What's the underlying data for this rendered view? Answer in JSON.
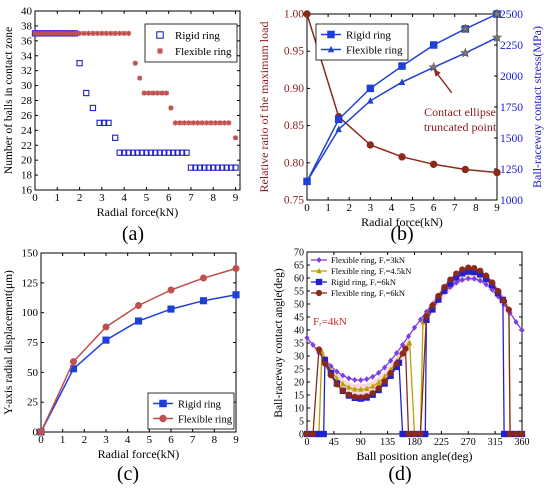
{
  "chart_data": [
    {
      "panel": "(a)",
      "type": "scatter",
      "xlabel": "Radial force(kN)",
      "ylabel": "Number of balls in contact zone",
      "xlim": [
        0,
        9.2
      ],
      "ylim": [
        16,
        40
      ],
      "xticks": [
        0,
        1,
        2,
        3,
        4,
        5,
        6,
        7,
        8,
        9
      ],
      "yticks": [
        16,
        18,
        20,
        22,
        24,
        26,
        28,
        30,
        32,
        34,
        36,
        38,
        40
      ],
      "legend_position": "top-right",
      "series": [
        {
          "name": "Rigid ring",
          "color": "#2222cc",
          "marker": "open-square",
          "x": [
            0,
            0.15,
            0.3,
            0.45,
            0.6,
            0.75,
            0.9,
            1.05,
            1.2,
            1.35,
            1.5,
            1.65,
            1.8,
            2.0,
            2.3,
            2.6,
            2.9,
            3.1,
            3.3,
            3.6,
            3.8,
            4.0,
            4.2,
            4.4,
            4.6,
            4.8,
            5.0,
            5.2,
            5.4,
            5.6,
            5.8,
            6.0,
            6.2,
            6.4,
            6.6,
            6.8,
            7.0,
            7.2,
            7.4,
            7.6,
            7.8,
            8.0,
            8.2,
            8.4,
            8.6,
            8.8,
            9.0
          ],
          "y": [
            37,
            37,
            37,
            37,
            37,
            37,
            37,
            37,
            37,
            37,
            37,
            37,
            37,
            33,
            29,
            27,
            25,
            25,
            25,
            23,
            21,
            21,
            21,
            21,
            21,
            21,
            21,
            21,
            21,
            21,
            21,
            21,
            21,
            21,
            21,
            21,
            19,
            19,
            19,
            19,
            19,
            19,
            19,
            19,
            19,
            19,
            19
          ]
        },
        {
          "name": "Flexible ring",
          "color": "#c0504d",
          "marker": "asterisk",
          "x": [
            0,
            0.15,
            0.3,
            0.45,
            0.6,
            0.75,
            0.9,
            1.05,
            1.2,
            1.35,
            1.5,
            1.65,
            1.8,
            2.0,
            2.2,
            2.4,
            2.6,
            2.8,
            3.0,
            3.2,
            3.4,
            3.6,
            3.8,
            4.0,
            4.2,
            4.5,
            4.7,
            4.9,
            5.1,
            5.3,
            5.5,
            5.7,
            5.9,
            6.1,
            6.3,
            6.5,
            6.7,
            6.9,
            7.1,
            7.3,
            7.5,
            7.7,
            7.9,
            8.1,
            8.3,
            8.5,
            8.7,
            9.0
          ],
          "y": [
            37,
            37,
            37,
            37,
            37,
            37,
            37,
            37,
            37,
            37,
            37,
            37,
            37,
            37,
            37,
            37,
            37,
            37,
            37,
            37,
            37,
            37,
            37,
            37,
            37,
            33,
            31,
            29,
            29,
            29,
            29,
            29,
            29,
            27,
            25,
            25,
            25,
            25,
            25,
            25,
            25,
            25,
            25,
            25,
            25,
            25,
            25,
            23
          ]
        }
      ]
    },
    {
      "panel": "(b)",
      "type": "line",
      "xlabel": "Radial force(kN)",
      "ylabel_left": "Relative ratio of the maximum load",
      "ylabel_right": "Ball-raceway contact stress(MPa)",
      "xlim": [
        0,
        9
      ],
      "ylim_left": [
        0.75,
        1.0
      ],
      "ylim_right": [
        1000,
        2500
      ],
      "xticks": [
        0,
        1,
        2,
        3,
        4,
        5,
        6,
        7,
        8,
        9
      ],
      "yticks_left": [
        "0.75",
        "0.80",
        "0.85",
        "0.90",
        "0.95",
        "1.00"
      ],
      "yticks_right": [
        1000,
        1250,
        1500,
        1750,
        2000,
        2250,
        2500
      ],
      "legend_position": "upper-left",
      "annotation": [
        "Contact ellipse",
        "truncated point"
      ],
      "annotation_point": [
        6,
        2075
      ],
      "series": [
        {
          "name": "",
          "axis": "left",
          "color": "#8b2a1a",
          "marker": "circle",
          "x": [
            0,
            1.5,
            3,
            4.5,
            6,
            7.5,
            9
          ],
          "y": [
            1.0,
            0.862,
            0.824,
            0.808,
            0.798,
            0.791,
            0.787
          ]
        },
        {
          "name": "Rigid ring",
          "axis": "right",
          "color": "#1f3fd6",
          "marker": "square",
          "x": [
            0,
            1.5,
            3,
            4.5,
            6,
            7.5,
            9
          ],
          "y": [
            1150,
            1650,
            1900,
            2080,
            2250,
            2380,
            2500
          ]
        },
        {
          "name": "Flexible ring",
          "axis": "right",
          "color": "#1f3fd6",
          "marker": "triangle",
          "x": [
            0,
            1.5,
            3,
            4.5,
            6,
            7.5,
            9
          ],
          "y": [
            1150,
            1570,
            1800,
            1950,
            2070,
            2185,
            2310
          ]
        }
      ],
      "truncation_markers": {
        "marker": "star",
        "color": "#777777",
        "points": [
          {
            "series": 2,
            "index": 4
          },
          {
            "series": 2,
            "index": 5
          },
          {
            "series": 2,
            "index": 6
          },
          {
            "series": 1,
            "index": 5
          },
          {
            "series": 1,
            "index": 6
          }
        ]
      }
    },
    {
      "panel": "(c)",
      "type": "line",
      "xlabel": "Radial force(kN)",
      "ylabel": "Y-axis radial displacement(μm)",
      "xlim": [
        0,
        9
      ],
      "ylim": [
        0,
        150
      ],
      "xticks": [
        0,
        1,
        2,
        3,
        4,
        5,
        6,
        7,
        8,
        9
      ],
      "yticks": [
        0,
        25,
        50,
        75,
        100,
        125,
        150
      ],
      "legend_position": "bottom-right",
      "series": [
        {
          "name": "Rigid ring",
          "color": "#1f3fd6",
          "marker": "square",
          "x": [
            0,
            1.5,
            3,
            4.5,
            6,
            7.5,
            9
          ],
          "y": [
            0,
            53,
            77,
            93,
            103,
            110,
            115
          ]
        },
        {
          "name": "Flexible ring",
          "color": "#c0504d",
          "marker": "circle",
          "x": [
            0,
            1.5,
            3,
            4.5,
            6,
            7.5,
            9
          ],
          "y": [
            0,
            59,
            88,
            106,
            119,
            129,
            137
          ]
        }
      ]
    },
    {
      "panel": "(d)",
      "type": "line",
      "xlabel": "Ball position angle(deg)",
      "ylabel": "Ball-raceway contact angle(deg)",
      "xlim": [
        0,
        360
      ],
      "ylim": [
        0,
        70
      ],
      "xticks": [
        0,
        45,
        90,
        135,
        180,
        225,
        270,
        315,
        360
      ],
      "yticks": [
        0,
        5,
        10,
        15,
        20,
        25,
        30,
        35,
        40,
        45,
        50,
        55,
        60,
        65,
        70
      ],
      "legend_position": "upper-left",
      "annotation": "Fᵣ=4kN",
      "series": [
        {
          "name": "Flexible ring,  Fᵣ=3kN",
          "color": "#7b3fe4",
          "marker": "diamond",
          "x": [
            0,
            10,
            20,
            30,
            40,
            50,
            60,
            70,
            80,
            90,
            100,
            110,
            120,
            130,
            140,
            150,
            160,
            170,
            180,
            190,
            200,
            210,
            220,
            230,
            240,
            250,
            260,
            270,
            280,
            290,
            300,
            310,
            320,
            330,
            340,
            350,
            360
          ],
          "y": [
            37,
            34.3,
            31.2,
            28.5,
            26.1,
            24.0,
            22.5,
            21.4,
            20.8,
            20.7,
            21.1,
            22.0,
            23.5,
            25.6,
            28.2,
            31.1,
            34.3,
            37.6,
            40.9,
            44.0,
            47.0,
            49.9,
            52.4,
            54.7,
            56.6,
            58.2,
            59.3,
            59.8,
            59.7,
            59.0,
            57.6,
            55.6,
            53.0,
            50.0,
            46.6,
            43.1,
            39.9
          ]
        },
        {
          "name": "Flexible ring,  Fᵣ=4.5kN",
          "color": "#b8a000",
          "marker": "triangle",
          "x": [
            0,
            10,
            20,
            25,
            30,
            40,
            50,
            60,
            70,
            80,
            90,
            100,
            110,
            120,
            130,
            140,
            150,
            160,
            170,
            172,
            180,
            190,
            194,
            200,
            210,
            220,
            230,
            240,
            250,
            260,
            270,
            280,
            290,
            300,
            310,
            320,
            330,
            338,
            340,
            350,
            360
          ],
          "y": [
            0,
            0,
            0,
            31.5,
            29.0,
            24.4,
            21.3,
            19.2,
            17.9,
            17.2,
            17.1,
            17.4,
            18.3,
            19.8,
            22.0,
            24.7,
            27.8,
            31.2,
            34.6,
            35.0,
            0,
            0,
            43.0,
            45.6,
            49.3,
            52.6,
            55.6,
            58.1,
            60.0,
            61.4,
            62.0,
            61.9,
            61.0,
            59.4,
            57.2,
            54.3,
            50.8,
            47.8,
            0,
            0,
            0
          ]
        },
        {
          "name": "Rigid ring,  Fᵣ=6kN",
          "color": "#2020d0",
          "marker": "square",
          "x": [
            0,
            10,
            20,
            28,
            30,
            40,
            50,
            60,
            70,
            80,
            90,
            100,
            110,
            120,
            130,
            140,
            150,
            154,
            160,
            170,
            180,
            190,
            198,
            200,
            210,
            220,
            230,
            240,
            250,
            260,
            270,
            280,
            290,
            300,
            310,
            320,
            328,
            330,
            340,
            350,
            360
          ],
          "y": [
            0,
            0,
            0,
            0,
            28.5,
            23.4,
            19.4,
            16.6,
            14.8,
            13.9,
            13.6,
            14.0,
            15.1,
            16.9,
            19.4,
            22.4,
            25.8,
            27.4,
            0,
            0,
            0,
            0,
            0,
            43.9,
            47.9,
            51.7,
            55.1,
            57.9,
            60.2,
            61.8,
            62.5,
            62.3,
            61.4,
            59.7,
            57.3,
            54.2,
            51.6,
            0,
            0,
            0,
            0
          ]
        },
        {
          "name": "Flexible ring,  Fᵣ=6kN",
          "color": "#8b2a1a",
          "marker": "circle",
          "x": [
            0,
            10,
            20,
            30,
            40,
            50,
            60,
            70,
            80,
            90,
            100,
            110,
            120,
            130,
            140,
            150,
            160,
            165,
            170,
            180,
            190,
            200,
            210,
            220,
            230,
            240,
            250,
            260,
            270,
            280,
            290,
            300,
            310,
            320,
            330,
            338,
            340,
            350,
            360
          ],
          "y": [
            0,
            0,
            32.5,
            27.1,
            22.6,
            19.1,
            16.7,
            15.1,
            14.3,
            14.1,
            14.5,
            15.7,
            17.6,
            20.2,
            23.4,
            27.0,
            30.9,
            32.8,
            0,
            0,
            0,
            45.3,
            49.4,
            53.1,
            56.5,
            59.4,
            61.7,
            63.3,
            64.0,
            63.8,
            62.8,
            60.9,
            58.3,
            55.0,
            51.1,
            47.8,
            0,
            0,
            0
          ]
        }
      ],
      "highlight_color": "#f4c9cf"
    }
  ],
  "panel_labels": [
    "(a)",
    "(b)",
    "(c)",
    "(d)"
  ]
}
